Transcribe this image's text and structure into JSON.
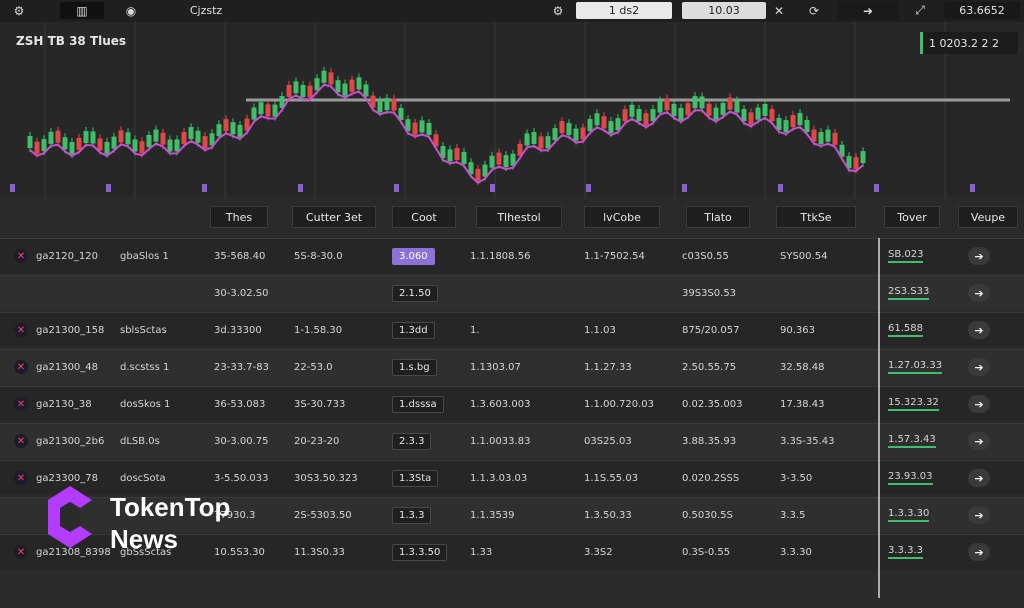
{
  "topbar": {
    "left_icons": [
      "gear-icon",
      "chart-icon",
      "camera-icon"
    ],
    "app_label": "Cjzstz",
    "right_items": [
      {
        "icon": "settings-icon"
      },
      {
        "label": "1 ds2"
      },
      {
        "label": "10.03"
      },
      {
        "icon": "cursor-icon"
      },
      {
        "icon": "refresh-icon"
      },
      {
        "icon": "arrow-icon"
      },
      {
        "icon": "expand-icon"
      },
      {
        "label": "63.6652"
      }
    ]
  },
  "chart": {
    "symbol_label": "ZSH TB 38 Tlues",
    "price_label": "1 0203.2 2 2",
    "colors": {
      "up": "#3fbf6a",
      "down": "#e04848",
      "ma": "#c64fd1",
      "grid": "#383838",
      "reference": "#9a9a9a"
    }
  },
  "table": {
    "headers": [
      "Thes",
      "Cutter 3et",
      "Coot",
      "Tlhestol",
      "lvCobe",
      "Tlato",
      "TtkSe",
      "Tover",
      "Veupe"
    ],
    "rows": [
      {
        "name": "ga2120_120",
        "desc": "gbaSlos 1",
        "c1": "35-568.40",
        "c2": "5S-8-30.0",
        "c3": "3.060",
        "c4": "1.1.1808.56",
        "c5": "1.1-7502.54",
        "c6": "c03S0.55",
        "c7": "SYS00.54",
        "c8": "SB.023",
        "action": "arrow"
      },
      {
        "name": "",
        "desc": "",
        "c1": "30-3.02.S0",
        "c2": "",
        "c3": "2.1.50",
        "c4": "",
        "c5": "",
        "c6": "39S3S0.53",
        "c7": "",
        "c8": "2S3.S33",
        "action": "arrow"
      },
      {
        "name": "ga21300_158",
        "desc": "sblsSctas",
        "c1": "3d.33300",
        "c2": "1-1.58.30",
        "c3": "1.3dd",
        "c4": "1.",
        "c5": "1.1.03",
        "c6": "875/20.057",
        "c7": "90.363",
        "c8": "61.588",
        "action": "arrow"
      },
      {
        "name": "ga21300_48",
        "desc": "d.scstss 1",
        "c1": "23-33.7-83",
        "c2": "22-53.0",
        "c3": "1.s.bg",
        "c4": "1.1303.07",
        "c5": "1.1.27.33",
        "c6": "2.50.55.75",
        "c7": "32.58.48",
        "c8": "1.27.03.33",
        "action": "arrow"
      },
      {
        "name": "ga2130_38",
        "desc": "dosSkos 1",
        "c1": "36-53.083",
        "c2": "3S-30.733",
        "c3": "1.dsssa",
        "c4": "1.3.603.003",
        "c5": "1.1.00.720.03",
        "c6": "0.02.35.003",
        "c7": "17.38.43",
        "c8": "15.323.32",
        "action": "arrow"
      },
      {
        "name": "ga21300_2b6",
        "desc": "dLSB.0s",
        "c1": "30-3.00.75",
        "c2": "20-23-20",
        "c3": "2.3.3",
        "c4": "1.1.0033.83",
        "c5": "03S25.03",
        "c6": "3.88.35.93",
        "c7": "3.3S-35.43",
        "c8": "1.57.3.43",
        "action": "arrow"
      },
      {
        "name": "ga23300_78",
        "desc": "doscSota",
        "c1": "3-5.50.033",
        "c2": "30S3.50.323",
        "c3": "1.3Sta",
        "c4": "1.1.3.03.03",
        "c5": "1.1S.55.03",
        "c6": "0.020.2SSS",
        "c7": "3-3.50",
        "c8": "23.93.03",
        "action": "arrow"
      },
      {
        "name": "",
        "desc": "",
        "c1": "77930.3",
        "c2": "2S-5303.50",
        "c3": "1.3.3",
        "c4": "1.1.3539",
        "c5": "1.3.50.33",
        "c6": "0.5030.5S",
        "c7": "3.3.5",
        "c8": "1.3.3.30",
        "action": "arrow"
      },
      {
        "name": "ga21308_8398",
        "desc": "gbSsSctas",
        "c1": "10.5S3.30",
        "c2": "11.3S0.33",
        "c3": "1.3.3.50",
        "c4": "1.33",
        "c5": "3.3S2",
        "c6": "0.3S-0.55",
        "c7": "3.3.30",
        "c8": "3.3.3.3",
        "action": "arrow"
      }
    ]
  },
  "watermark": {
    "line1": "TokenTop",
    "line2": "News"
  }
}
